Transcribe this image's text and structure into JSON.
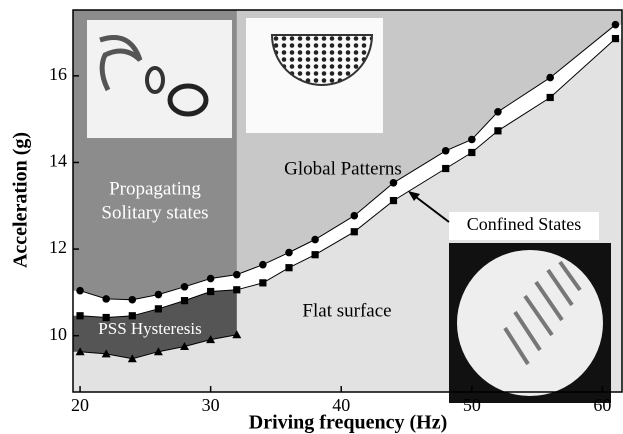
{
  "chart_data": {
    "type": "phase-diagram",
    "x_label": "Driving frequency (Hz)",
    "y_label": "Acceleration (g)",
    "xlim": [
      19.46,
      61.5
    ],
    "ylim": [
      8.7,
      17.52
    ],
    "xticks": [
      20,
      30,
      40,
      50,
      60
    ],
    "yticks": [
      10,
      12,
      14,
      16
    ],
    "region_boundary_x": 32,
    "series": [
      {
        "marker": "circle",
        "color": "#000000",
        "x": [
          20,
          22,
          24,
          26,
          28,
          30,
          32,
          34,
          36,
          38,
          41,
          44,
          48,
          50,
          52,
          56,
          61
        ],
        "values": [
          11.04,
          10.85,
          10.83,
          10.95,
          11.13,
          11.32,
          11.41,
          11.64,
          11.92,
          12.22,
          12.77,
          13.53,
          14.27,
          14.53,
          15.17,
          15.96,
          17.18
        ]
      },
      {
        "marker": "square",
        "color": "#000000",
        "x": [
          20,
          22,
          24,
          26,
          28,
          30,
          32,
          34,
          36,
          38,
          41,
          44,
          48,
          50,
          52,
          56,
          61
        ],
        "values": [
          10.46,
          10.42,
          10.46,
          10.62,
          10.81,
          11.02,
          11.06,
          11.22,
          11.57,
          11.87,
          12.4,
          13.12,
          13.86,
          14.23,
          14.73,
          15.5,
          16.86
        ]
      },
      {
        "marker": "triangle",
        "color": "#000000",
        "x": [
          20,
          22,
          24,
          26,
          28,
          30,
          32
        ],
        "values": [
          9.63,
          9.58,
          9.47,
          9.63,
          9.75,
          9.91,
          10.02
        ]
      }
    ],
    "annotations": [
      "Propagating",
      "Solitary states",
      "Global Patterns",
      "Confined States",
      "Flat surface",
      "PSS Hysteresis"
    ]
  }
}
